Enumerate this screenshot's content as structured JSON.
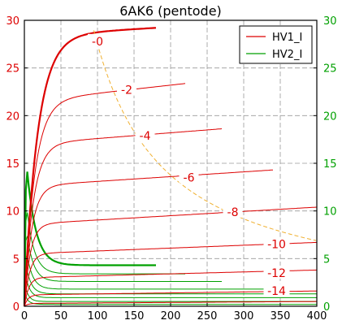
{
  "chart_data": {
    "type": "line",
    "title": "6AK6 (pentode)",
    "xlim": [
      0,
      400
    ],
    "ylim": [
      0,
      30
    ],
    "x_ticks": [
      "0",
      "50",
      "100",
      "150",
      "200",
      "250",
      "300",
      "350",
      "400"
    ],
    "y_ticks": [
      "0",
      "5",
      "10",
      "15",
      "20",
      "25",
      "30"
    ],
    "y_ticks_right": [
      "0",
      "5",
      "10",
      "15",
      "20",
      "25",
      "30"
    ],
    "grid": true,
    "legend_position": "top-right",
    "legend": [
      {
        "label": "HV1_I",
        "color": "#dd0000"
      },
      {
        "label": "HV2_I",
        "color": "#00a000"
      }
    ],
    "colors": {
      "hv1": "#dd0000",
      "hv2": "#00a000",
      "pd_max": "#f0b030",
      "right_axis": "#00a000"
    },
    "series": [
      {
        "name": "HV1_I",
        "label": "-0",
        "vmax": 180,
        "sat": 28.4,
        "slope": 0.0045,
        "knee": 18,
        "bold": true,
        "label_at": [
          100,
          27.8
        ]
      },
      {
        "name": "HV1_I",
        "label": "-2",
        "vmax": 220,
        "sat": 21.5,
        "slope": 0.0085,
        "knee": 14,
        "label_at": [
          140,
          22.7
        ]
      },
      {
        "name": "HV1_I",
        "label": "-4",
        "vmax": 270,
        "sat": 17.0,
        "slope": 0.006,
        "knee": 12,
        "label_at": [
          165,
          17.9
        ]
      },
      {
        "name": "HV1_I",
        "label": "-6",
        "vmax": 340,
        "sat": 12.6,
        "slope": 0.005,
        "knee": 10,
        "label_at": [
          225,
          13.5
        ]
      },
      {
        "name": "HV1_I",
        "label": "-8",
        "vmax": 400,
        "sat": 8.6,
        "slope": 0.0045,
        "knee": 8,
        "label_at": [
          285,
          9.9
        ]
      },
      {
        "name": "HV1_I",
        "label": "-10",
        "vmax": 400,
        "sat": 5.5,
        "slope": 0.003,
        "knee": 7,
        "label_at": [
          345,
          6.5
        ]
      },
      {
        "name": "HV1_I",
        "label": "-12",
        "vmax": 400,
        "sat": 3.0,
        "slope": 0.002,
        "knee": 6,
        "label_at": [
          345,
          3.5
        ]
      },
      {
        "name": "HV1_I",
        "label": "-14",
        "vmax": 400,
        "sat": 1.2,
        "slope": 0.001,
        "knee": 5,
        "label_at": [
          345,
          1.6
        ]
      },
      {
        "name": "HV1_I",
        "label": "",
        "vmax": 400,
        "sat": 0.3,
        "slope": 0.0005,
        "knee": 5
      },
      {
        "name": "HV2_I",
        "vmax": 180,
        "peak": 18.0,
        "end": 4.3,
        "tau": 12,
        "bold": true
      },
      {
        "name": "HV2_I",
        "vmax": 220,
        "peak": 13.0,
        "end": 3.4,
        "tau": 10
      },
      {
        "name": "HV2_I",
        "vmax": 270,
        "peak": 10.0,
        "end": 2.6,
        "tau": 9
      },
      {
        "name": "HV2_I",
        "vmax": 340,
        "peak": 7.5,
        "end": 1.8,
        "tau": 8
      },
      {
        "name": "HV2_I",
        "vmax": 400,
        "peak": 5.5,
        "end": 1.3,
        "tau": 7
      },
      {
        "name": "HV2_I",
        "vmax": 400,
        "peak": 4.0,
        "end": 0.9,
        "tau": 6
      },
      {
        "name": "HV2_I",
        "vmax": 400,
        "peak": 2.5,
        "end": 0.5,
        "tau": 5
      },
      {
        "name": "HV2_I",
        "vmax": 400,
        "peak": 1.3,
        "end": 0.2,
        "tau": 5
      }
    ],
    "pd_max_curve": {
      "power": 2.75,
      "xrange": [
        95,
        400
      ]
    }
  }
}
